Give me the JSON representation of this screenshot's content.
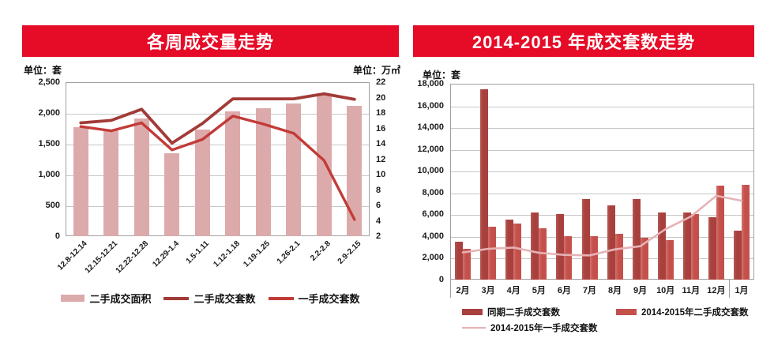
{
  "chart_data": [
    {
      "type": "bar",
      "combo": "bar+2 lines, dual axis",
      "title": "各周成交量走势",
      "categories": [
        "12.8-12.14",
        "12.15-12.21",
        "12.22-12.28",
        "12.29-1.4",
        "1.5-1.11",
        "1.12-1.18",
        "1.19-1.25",
        "1.26-2.1",
        "2.2-2.8",
        "2.9-2.15"
      ],
      "series": [
        {
          "name": "二手成交面积",
          "type": "bar",
          "axis": "right",
          "unit": "万㎡",
          "color": "#dcaaab",
          "values": [
            16.2,
            15.7,
            17.3,
            12.8,
            15.9,
            18.2,
            18.6,
            19.2,
            20.5,
            18.9
          ]
        },
        {
          "name": "二手成交套数",
          "type": "line",
          "axis": "left",
          "unit": "套",
          "color": "#a23b38",
          "values": [
            1840,
            1880,
            2060,
            1510,
            1830,
            2230,
            2230,
            2230,
            2310,
            2220
          ]
        },
        {
          "name": "一手成交套数",
          "type": "line",
          "axis": "left",
          "unit": "套",
          "color": "#c23b38",
          "values": [
            1780,
            1710,
            1840,
            1400,
            1570,
            1950,
            1820,
            1670,
            1230,
            270
          ]
        }
      ],
      "left_axis": {
        "label": "单位：套",
        "min": 0,
        "max": 2500,
        "step": 500,
        "tick_labels": [
          "2,500",
          "2,000",
          "1,500",
          "1,000",
          "500",
          "0"
        ]
      },
      "right_axis": {
        "label": "单位：万㎡",
        "min": 2,
        "max": 22,
        "step": 2,
        "tick_labels": [
          "22",
          "20",
          "18",
          "16",
          "14",
          "12",
          "10",
          "8",
          "6",
          "4",
          "2"
        ]
      },
      "grid": "horizontal gridlines on",
      "legend_position": "bottom"
    },
    {
      "type": "bar",
      "combo": "grouped bars + line, single axis",
      "title": "2014-2015 年成交套数走势",
      "categories": [
        "2月",
        "3月",
        "4月",
        "5月",
        "6月",
        "7月",
        "8月",
        "9月",
        "10月",
        "11月",
        "12月",
        "1月"
      ],
      "series": [
        {
          "name": "同期二手成交套数",
          "type": "bar",
          "unit": "套",
          "color": "#a8413e",
          "values": [
            3500,
            17500,
            5500,
            6200,
            6000,
            7400,
            6800,
            7400,
            6200,
            6200,
            5750,
            4500
          ]
        },
        {
          "name": "2014-2015年二手成交套数",
          "type": "bar",
          "unit": "套",
          "color": "#c4504c",
          "values": [
            2850,
            4840,
            5170,
            4700,
            4000,
            4000,
            4200,
            3850,
            3650,
            6050,
            8650,
            8700
          ]
        },
        {
          "name": "2014-2015年一手成交套数",
          "type": "line",
          "unit": "套",
          "color": "#e6b3b6",
          "values": [
            2500,
            2830,
            2950,
            2470,
            2270,
            2230,
            2780,
            3070,
            4640,
            5800,
            7700,
            7250
          ]
        }
      ],
      "y_axis": {
        "label": "单位：套",
        "min": 0,
        "max": 18000,
        "step": 2000,
        "tick_labels": [
          "18,000",
          "16,000",
          "14,000",
          "12,000",
          "10,000",
          "8,000",
          "6,000",
          "4,000",
          "2,000",
          "0"
        ]
      },
      "grid": "horizontal gridlines on",
      "legend_position": "bottom",
      "year_divider_after_category": "12月"
    }
  ]
}
